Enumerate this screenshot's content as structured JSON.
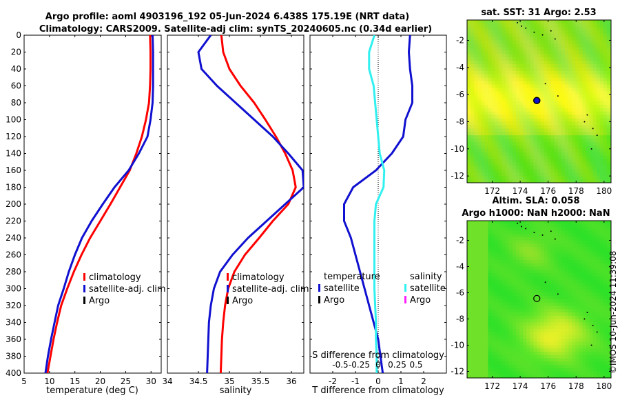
{
  "title_line1": "Argo profile: aoml 4903196_192 05-Jun-2024 6.438S 175.19E (NRT data)",
  "title_line2": "Climatology: CARS2009. Satellite-adj clim: synTS_20240605.nc (0.34d earlier)",
  "watermark": "©IMOS 10-Jun-2024 11:39:08",
  "colors": {
    "clim": "#ff0000",
    "sat": "#1010d0",
    "argo": "#000000",
    "cyan": "#30f0f0",
    "magenta": "#ff20ff"
  },
  "chart_data": [
    {
      "type": "line",
      "name": "temperature-panel",
      "xlabel": "temperature (deg C)",
      "xlim": [
        5,
        32
      ],
      "ylim": [
        0,
        400
      ],
      "xticks": [
        5,
        10,
        15,
        20,
        25,
        30
      ],
      "yticks": [
        0,
        20,
        40,
        60,
        80,
        100,
        120,
        140,
        160,
        180,
        200,
        220,
        240,
        260,
        280,
        300,
        320,
        340,
        360,
        380,
        400
      ],
      "legend": [
        "climatology",
        "satellite-adj. clim",
        "Argo"
      ],
      "series": [
        {
          "name": "climatology",
          "color": "clim",
          "points": [
            [
              29.8,
              0
            ],
            [
              29.9,
              20
            ],
            [
              29.9,
              40
            ],
            [
              29.8,
              60
            ],
            [
              29.6,
              80
            ],
            [
              29.0,
              100
            ],
            [
              28.2,
              120
            ],
            [
              27.1,
              140
            ],
            [
              25.8,
              160
            ],
            [
              23.9,
              180
            ],
            [
              22.0,
              200
            ],
            [
              20.0,
              220
            ],
            [
              18.0,
              240
            ],
            [
              16.3,
              260
            ],
            [
              14.8,
              280
            ],
            [
              13.5,
              300
            ],
            [
              12.3,
              320
            ],
            [
              11.5,
              340
            ],
            [
              10.8,
              360
            ],
            [
              10.2,
              380
            ],
            [
              9.6,
              400
            ]
          ]
        },
        {
          "name": "satellite-adj. clim",
          "color": "sat",
          "points": [
            [
              30.3,
              0
            ],
            [
              30.4,
              20
            ],
            [
              30.4,
              40
            ],
            [
              30.4,
              60
            ],
            [
              30.3,
              80
            ],
            [
              29.9,
              100
            ],
            [
              29.3,
              120
            ],
            [
              27.6,
              140
            ],
            [
              25.6,
              160
            ],
            [
              22.8,
              180
            ],
            [
              20.5,
              200
            ],
            [
              18.3,
              220
            ],
            [
              16.4,
              240
            ],
            [
              15.0,
              260
            ],
            [
              13.8,
              280
            ],
            [
              12.8,
              300
            ],
            [
              11.7,
              320
            ],
            [
              11.0,
              340
            ],
            [
              10.3,
              360
            ],
            [
              9.7,
              380
            ],
            [
              9.2,
              400
            ]
          ]
        }
      ]
    },
    {
      "type": "line",
      "name": "salinity-panel",
      "xlabel": "salinity",
      "xlim": [
        34.0,
        36.2
      ],
      "ylim": [
        0,
        400
      ],
      "xticks": [
        34,
        34.5,
        35,
        35.5,
        36
      ],
      "legend": [
        "climatology",
        "satellite-adj. clim",
        "Argo"
      ],
      "series": [
        {
          "name": "climatology",
          "color": "clim",
          "points": [
            [
              34.87,
              0
            ],
            [
              34.9,
              20
            ],
            [
              35.0,
              40
            ],
            [
              35.18,
              60
            ],
            [
              35.4,
              80
            ],
            [
              35.58,
              100
            ],
            [
              35.75,
              120
            ],
            [
              35.9,
              140
            ],
            [
              36.02,
              160
            ],
            [
              36.07,
              180
            ],
            [
              35.95,
              200
            ],
            [
              35.7,
              220
            ],
            [
              35.48,
              240
            ],
            [
              35.25,
              260
            ],
            [
              35.08,
              280
            ],
            [
              34.98,
              300
            ],
            [
              34.93,
              320
            ],
            [
              34.9,
              340
            ],
            [
              34.88,
              360
            ],
            [
              34.87,
              380
            ],
            [
              34.86,
              400
            ]
          ]
        },
        {
          "name": "satellite-adj. clim",
          "color": "sat",
          "points": [
            [
              34.7,
              0
            ],
            [
              34.5,
              20
            ],
            [
              34.55,
              40
            ],
            [
              34.8,
              60
            ],
            [
              35.1,
              80
            ],
            [
              35.4,
              100
            ],
            [
              35.7,
              120
            ],
            [
              35.95,
              140
            ],
            [
              36.18,
              160
            ],
            [
              36.2,
              180
            ],
            [
              35.9,
              200
            ],
            [
              35.6,
              220
            ],
            [
              35.3,
              240
            ],
            [
              35.05,
              260
            ],
            [
              34.85,
              280
            ],
            [
              34.75,
              300
            ],
            [
              34.7,
              320
            ],
            [
              34.67,
              340
            ],
            [
              34.66,
              360
            ],
            [
              34.65,
              380
            ],
            [
              34.64,
              400
            ]
          ]
        }
      ]
    },
    {
      "type": "line",
      "name": "difference-panel",
      "xlabel": "T difference from climatology",
      "top_label": "S difference from climatology",
      "xlim": [
        -3,
        3
      ],
      "ylim": [
        0,
        400
      ],
      "xticks": [
        -2,
        -1,
        0,
        1,
        2
      ],
      "s_xlim": [
        -0.9,
        0.9
      ],
      "s_ticks": [
        "-0.5",
        "-0.25",
        "0",
        "0.25",
        "0.5"
      ],
      "legend_temperature": {
        "title": "temperature",
        "items": [
          "satellite",
          "Argo"
        ]
      },
      "legend_salinity": {
        "title": "salinity",
        "items": [
          "satellite",
          "Argo"
        ]
      },
      "series": [
        {
          "name": "temperature satellite",
          "color": "sat",
          "points": [
            [
              1.4,
              0
            ],
            [
              1.35,
              20
            ],
            [
              1.4,
              40
            ],
            [
              1.5,
              60
            ],
            [
              1.5,
              80
            ],
            [
              1.2,
              100
            ],
            [
              1.1,
              120
            ],
            [
              0.6,
              140
            ],
            [
              -0.1,
              160
            ],
            [
              -1.1,
              180
            ],
            [
              -1.5,
              200
            ],
            [
              -1.5,
              220
            ],
            [
              -1.2,
              240
            ],
            [
              -1.0,
              260
            ],
            [
              -0.8,
              280
            ],
            [
              -0.6,
              300
            ],
            [
              -0.4,
              320
            ],
            [
              -0.2,
              340
            ],
            [
              0.0,
              360
            ],
            [
              0.1,
              380
            ],
            [
              0.2,
              400
            ]
          ]
        },
        {
          "name": "salinity satellite",
          "color": "cyan",
          "points": [
            [
              -0.05,
              0
            ],
            [
              -0.12,
              20
            ],
            [
              -0.12,
              40
            ],
            [
              -0.06,
              60
            ],
            [
              -0.04,
              80
            ],
            [
              -0.02,
              100
            ],
            [
              0.0,
              120
            ],
            [
              0.02,
              140
            ],
            [
              0.08,
              160
            ],
            [
              0.07,
              180
            ],
            [
              -0.03,
              200
            ],
            [
              -0.05,
              220
            ],
            [
              -0.05,
              240
            ],
            [
              -0.05,
              260
            ],
            [
              -0.05,
              280
            ],
            [
              -0.05,
              300
            ],
            [
              -0.04,
              320
            ],
            [
              -0.03,
              340
            ],
            [
              -0.03,
              360
            ],
            [
              -0.02,
              380
            ],
            [
              -0.02,
              400
            ]
          ]
        }
      ]
    },
    {
      "type": "heatmap",
      "name": "sst-map",
      "title": "sat. SST: 31 Argo: 2.53",
      "xlim": [
        170.2,
        180.5
      ],
      "ylim": [
        -12.5,
        -0.5
      ],
      "xticks": [
        172,
        174,
        176,
        178,
        180
      ],
      "yticks": [
        -2,
        -4,
        -6,
        -8,
        -10,
        -12
      ],
      "argo_position": [
        175.19,
        -6.438
      ]
    },
    {
      "type": "heatmap",
      "name": "sla-map",
      "title_line1": "Altim. SLA: 0.058",
      "title_line2": "Argo h1000: NaN h2000: NaN",
      "xlim": [
        170.2,
        180.5
      ],
      "ylim": [
        -12.5,
        -0.5
      ],
      "xticks": [
        172,
        174,
        176,
        178,
        180
      ],
      "yticks": [
        -2,
        -4,
        -6,
        -8,
        -10,
        -12
      ],
      "argo_position": [
        175.19,
        -6.438
      ]
    }
  ]
}
